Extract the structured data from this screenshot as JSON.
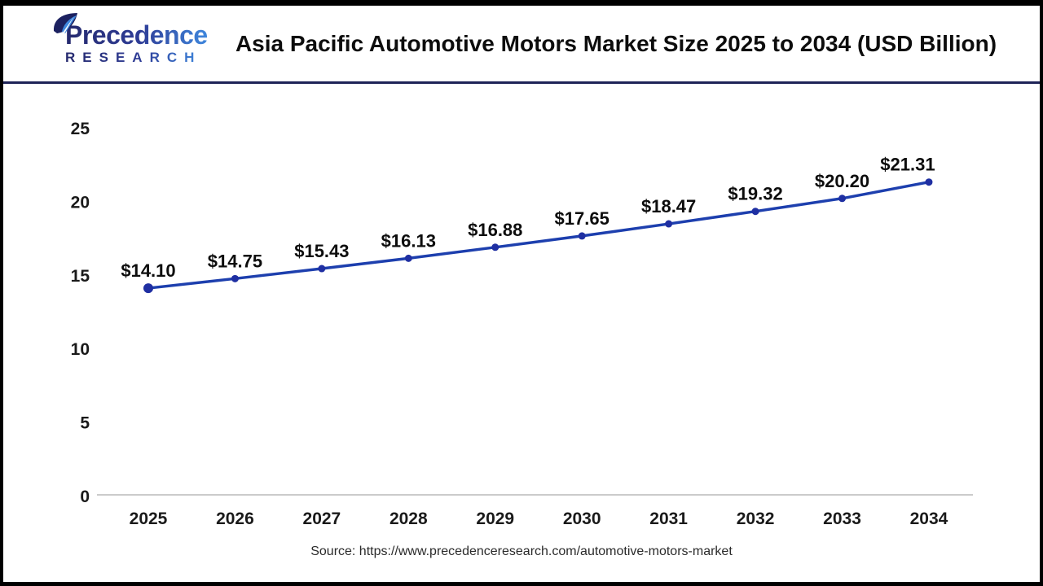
{
  "header": {
    "logo": {
      "line1": "Precedence",
      "line2": "RESEARCH"
    },
    "title": "Asia Pacific Automotive Motors Market Size 2025 to 2034 (USD Billion)"
  },
  "chart_data": {
    "type": "line",
    "title": "Asia Pacific Automotive Motors Market Size 2025 to 2034 (USD Billion)",
    "x": [
      2025,
      2026,
      2027,
      2028,
      2029,
      2030,
      2031,
      2032,
      2033,
      2034
    ],
    "values": [
      14.1,
      14.75,
      15.43,
      16.13,
      16.88,
      17.65,
      18.47,
      19.32,
      20.2,
      21.31
    ],
    "point_labels": [
      "$14.10",
      "$14.75",
      "$15.43",
      "$16.13",
      "$16.88",
      "$17.65",
      "$18.47",
      "$19.32",
      "$20.20",
      "$21.31"
    ],
    "xlabel": "",
    "ylabel": "",
    "ylim": [
      0,
      25
    ],
    "yticks": [
      0,
      5,
      10,
      15,
      20,
      25
    ],
    "grid": false,
    "legend_position": "none",
    "line_color": "#1d3fae",
    "point_color": "#1f2fa2",
    "axis_line_color": "#cbcbcb",
    "label_color": "#1a1a1a"
  },
  "footer": {
    "source": "Source: https://www.precedenceresearch.com/automotive-motors-market"
  }
}
